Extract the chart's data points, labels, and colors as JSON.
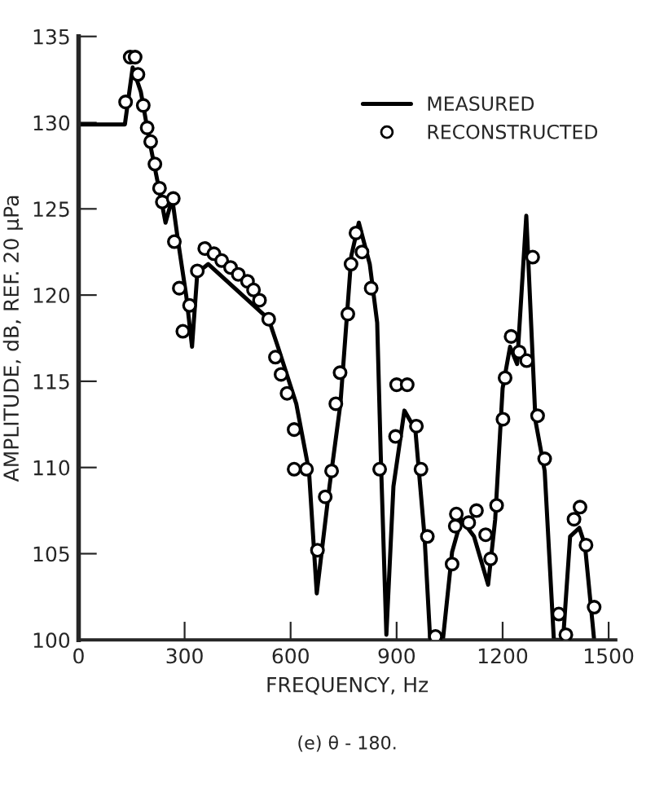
{
  "chart_data": {
    "type": "line",
    "xlabel": "FREQUENCY, Hz",
    "ylabel": "AMPLITUDE, dB, REF. 20 µPa",
    "annotations": [
      "(e) θ - 180."
    ],
    "xlim": [
      0,
      1520
    ],
    "ylim": [
      100,
      135
    ],
    "xticks": [
      0,
      300,
      600,
      900,
      1200,
      1500
    ],
    "yticks": [
      100,
      105,
      110,
      115,
      120,
      125,
      130,
      135
    ],
    "grid": false,
    "legend": "top right",
    "series": [
      {
        "name": "MEASURED",
        "color": "#000000",
        "marker": "none",
        "line_style": "solid",
        "x": [
          0,
          131,
          153,
          176,
          201,
          233,
          246,
          265,
          281,
          305,
          321,
          336,
          367,
          538,
          564,
          616,
          652,
          674,
          710,
          741,
          772,
          793,
          824,
          845,
          855,
          871,
          891,
          922,
          953,
          979,
          995,
          1031,
          1057,
          1083,
          1119,
          1159,
          1179,
          1200,
          1221,
          1241,
          1267,
          1293,
          1319,
          1345,
          1371,
          1391,
          1417,
          1433,
          1459
        ],
        "values": [
          129.9,
          129.9,
          133.2,
          131.8,
          128.9,
          125.6,
          124.2,
          125.6,
          123.2,
          119.9,
          117.0,
          121.3,
          121.8,
          118.6,
          117.0,
          113.7,
          109.8,
          102.7,
          108.9,
          113.7,
          122.3,
          124.2,
          121.8,
          118.4,
          110.8,
          100.3,
          108.9,
          113.3,
          112.2,
          106.0,
          100.0,
          100.0,
          105.1,
          107.0,
          106.0,
          103.2,
          107.0,
          114.6,
          117.0,
          116.0,
          124.6,
          112.7,
          109.8,
          100.0,
          100.0,
          106.0,
          106.5,
          105.5,
          100.0
        ]
      },
      {
        "name": "RECONSTRUCTED",
        "type": "scatter",
        "color": "#000000",
        "marker": "circle",
        "x": [
          133,
          146,
          160,
          168,
          183,
          194,
          204,
          216,
          229,
          237,
          268,
          271,
          285,
          295,
          314,
          336,
          357,
          383,
          405,
          430,
          452,
          478,
          495,
          512,
          538,
          557,
          573,
          590,
          610,
          610,
          645,
          676,
          698,
          716,
          728,
          740,
          762,
          771,
          785,
          802,
          828,
          852,
          897,
          900,
          930,
          956,
          969,
          987,
          1010,
          1057,
          1066,
          1069,
          1104,
          1126,
          1152,
          1166,
          1183,
          1201,
          1207,
          1224,
          1247,
          1268,
          1285,
          1299,
          1319,
          1359,
          1379,
          1402,
          1419,
          1436,
          1459
        ],
        "values": [
          131.2,
          133.8,
          133.8,
          132.8,
          131.0,
          129.7,
          128.9,
          127.6,
          126.2,
          125.4,
          125.6,
          123.1,
          120.4,
          117.9,
          119.4,
          121.4,
          122.7,
          122.4,
          122.0,
          121.6,
          121.2,
          120.8,
          120.3,
          119.7,
          118.6,
          116.4,
          115.4,
          114.3,
          112.2,
          109.9,
          109.9,
          105.2,
          108.3,
          109.8,
          113.7,
          115.5,
          118.9,
          121.8,
          123.6,
          122.5,
          120.4,
          109.9,
          111.8,
          114.8,
          114.8,
          112.4,
          109.9,
          106.0,
          100.2,
          104.4,
          106.6,
          107.3,
          106.8,
          107.5,
          106.1,
          104.7,
          107.8,
          112.8,
          115.2,
          117.6,
          116.7,
          116.2,
          122.2,
          113.0,
          110.5,
          101.5,
          100.3,
          107.0,
          107.7,
          105.5,
          101.9
        ]
      }
    ]
  }
}
